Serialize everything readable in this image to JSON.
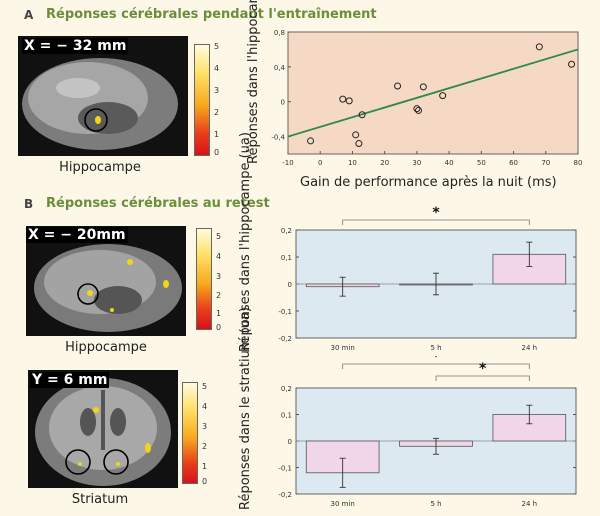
{
  "panel_a": {
    "letter": "A",
    "title": "Réponses cérébrales pendant l'entraînement",
    "coord": "X = − 32 mm",
    "brain_caption": "Hippocampe",
    "colorbar_ticks": [
      "5",
      "4",
      "3",
      "2",
      "1",
      "0"
    ]
  },
  "panel_b": {
    "letter": "B",
    "title": "Réponses cérébrales au retest",
    "hippo": {
      "coord": "X = − 20mm",
      "caption": "Hippocampe",
      "colorbar_ticks": [
        "5",
        "4",
        "3",
        "2",
        "1",
        "0"
      ]
    },
    "striatum": {
      "coord": "Y = 6 mm",
      "caption": "Striatum",
      "colorbar_ticks": [
        "5",
        "4",
        "3",
        "2",
        "1",
        "0"
      ]
    },
    "star": "*"
  },
  "colors": {
    "title_green": "#6a8e3c",
    "scatter_bg": "#f6d9c4",
    "bar_bg": "#dce9f0",
    "bar_fill": "#f0d6e8",
    "reg_line": "#2c8a4a"
  },
  "chart_data": [
    {
      "type": "scatter",
      "xlabel": "Gain de performance après la nuit (ms)",
      "ylabel": "Réponses dans l'hippocampe (ua)",
      "xlim": [
        -10,
        80
      ],
      "ylim": [
        -0.6,
        0.8
      ],
      "xticks": [
        "-10",
        "0",
        "10",
        "20",
        "30",
        "40",
        "50",
        "60",
        "70",
        "80"
      ],
      "yticks": [
        "0,8",
        "0,4",
        "0",
        "-0,4"
      ],
      "points": [
        {
          "x": -3,
          "y": -0.45
        },
        {
          "x": 7,
          "y": 0.03
        },
        {
          "x": 9,
          "y": 0.01
        },
        {
          "x": 11,
          "y": -0.38
        },
        {
          "x": 12,
          "y": -0.48
        },
        {
          "x": 13,
          "y": -0.15
        },
        {
          "x": 24,
          "y": 0.18
        },
        {
          "x": 30,
          "y": -0.08
        },
        {
          "x": 30.5,
          "y": -0.1
        },
        {
          "x": 32,
          "y": 0.17
        },
        {
          "x": 38,
          "y": 0.07
        },
        {
          "x": 68,
          "y": 0.63
        },
        {
          "x": 78,
          "y": 0.43
        }
      ],
      "regression": {
        "x": [
          -10,
          80
        ],
        "y": [
          -0.4,
          0.6
        ]
      }
    },
    {
      "type": "bar",
      "ylabel": "Réponses dans l'hippocampe (ua)",
      "categories": [
        "30 min",
        "5 h",
        "24 h"
      ],
      "values": [
        -0.01,
        0.0,
        0.11
      ],
      "errors": [
        0.035,
        0.04,
        0.045
      ],
      "ylim": [
        -0.2,
        0.2
      ],
      "yticks": [
        "0,2",
        "0,1",
        "0",
        "-0,1",
        "-0,2"
      ],
      "significance": [
        "30 min–24 h"
      ]
    },
    {
      "type": "bar",
      "ylabel": "Réponses dans le stratium (ua)",
      "categories": [
        "30 min",
        "5 h",
        "24 h"
      ],
      "values": [
        -0.12,
        -0.02,
        0.1
      ],
      "errors": [
        0.055,
        0.03,
        0.035
      ],
      "ylim": [
        -0.2,
        0.2
      ],
      "yticks": [
        "0,2",
        "0,1",
        "0",
        "-0,1",
        "-0,2"
      ],
      "significance": [
        "30 min–24 h",
        "5 h–24 h"
      ]
    }
  ]
}
